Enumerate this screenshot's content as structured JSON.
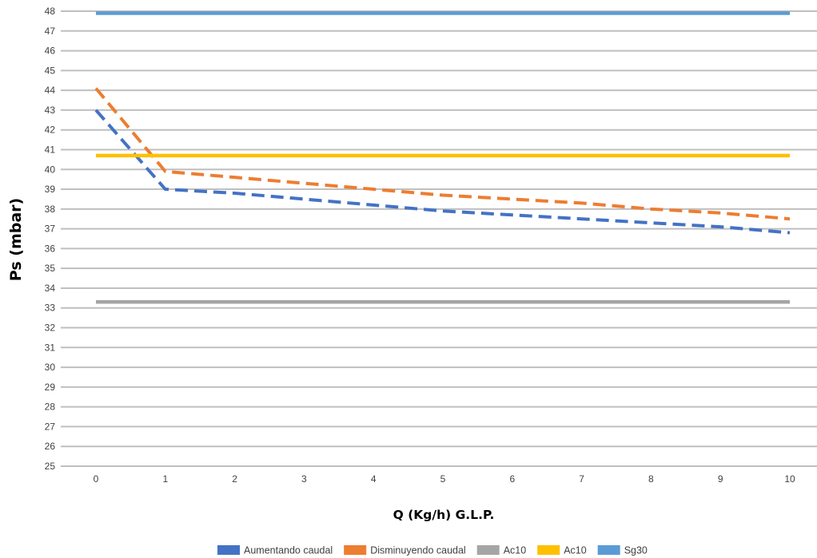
{
  "chart_data": {
    "type": "line",
    "title": "",
    "xlabel": "Q (Kg/h) G.L.P.",
    "ylabel": "Ps (mbar)",
    "xlim": [
      0,
      10
    ],
    "ylim": [
      25,
      48
    ],
    "x_ticks": [
      0,
      1,
      2,
      3,
      4,
      5,
      6,
      7,
      8,
      9,
      10
    ],
    "y_ticks": [
      25,
      26,
      27,
      28,
      29,
      30,
      31,
      32,
      33,
      34,
      35,
      36,
      37,
      38,
      39,
      40,
      41,
      42,
      43,
      44,
      45,
      46,
      47,
      48
    ],
    "grid": "horizontal",
    "legend_position": "bottom",
    "series": [
      {
        "name": "Aumentando caudal",
        "color": "#4472C4",
        "dashed": true,
        "x": [
          0,
          1,
          2,
          3,
          4,
          5,
          6,
          7,
          8,
          9,
          10
        ],
        "values": [
          43.0,
          39.0,
          38.8,
          38.5,
          38.2,
          37.9,
          37.7,
          37.5,
          37.3,
          37.1,
          36.8
        ]
      },
      {
        "name": "Disminuyendo caudal",
        "color": "#ED7D31",
        "dashed": true,
        "x": [
          0,
          1,
          2,
          3,
          4,
          5,
          6,
          7,
          8,
          9,
          10
        ],
        "values": [
          44.1,
          39.9,
          39.6,
          39.3,
          39.0,
          38.7,
          38.5,
          38.3,
          38.0,
          37.8,
          37.5
        ]
      },
      {
        "name": "Ac10",
        "color": "#A5A5A5",
        "dashed": false,
        "x": [
          0,
          10
        ],
        "values": [
          33.3,
          33.3
        ]
      },
      {
        "name": "Ac10",
        "color": "#FFC000",
        "dashed": false,
        "x": [
          0,
          10
        ],
        "values": [
          40.7,
          40.7
        ]
      },
      {
        "name": "Sg30",
        "color": "#5B9BD5",
        "dashed": false,
        "x": [
          0,
          10
        ],
        "values": [
          47.9,
          47.9
        ]
      }
    ]
  }
}
